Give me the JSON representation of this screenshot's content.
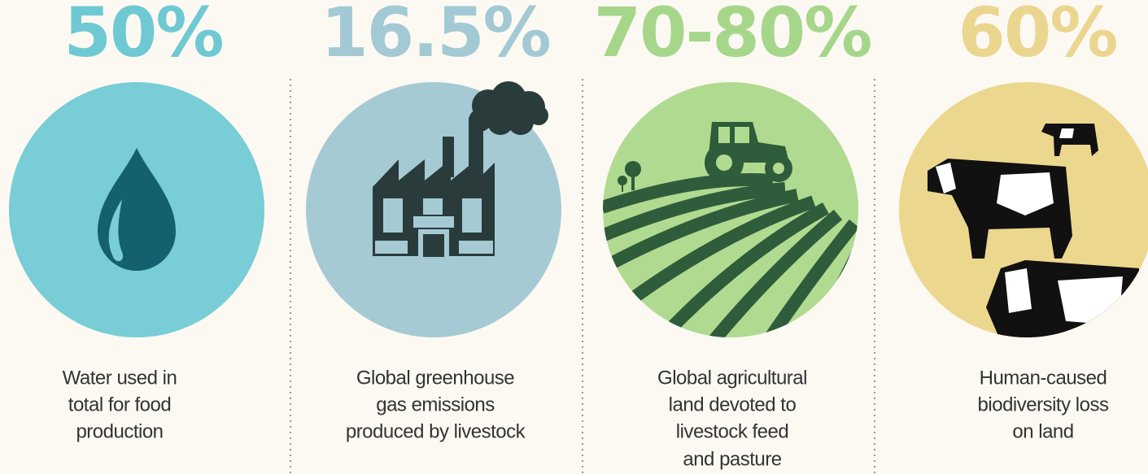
{
  "stats": [
    {
      "value": "50%",
      "lines": [
        "Water used in",
        "total for food",
        "production"
      ]
    },
    {
      "value": "16.5%",
      "lines": [
        "Global greenhouse",
        "gas emissions",
        "produced by livestock"
      ]
    },
    {
      "value": "70-80%",
      "lines": [
        "Global agricultural",
        "land devoted to",
        "livestock feed",
        "and pasture"
      ]
    },
    {
      "value": "60%",
      "lines": [
        "Human-caused",
        "biodiversity loss",
        "on land"
      ]
    }
  ]
}
